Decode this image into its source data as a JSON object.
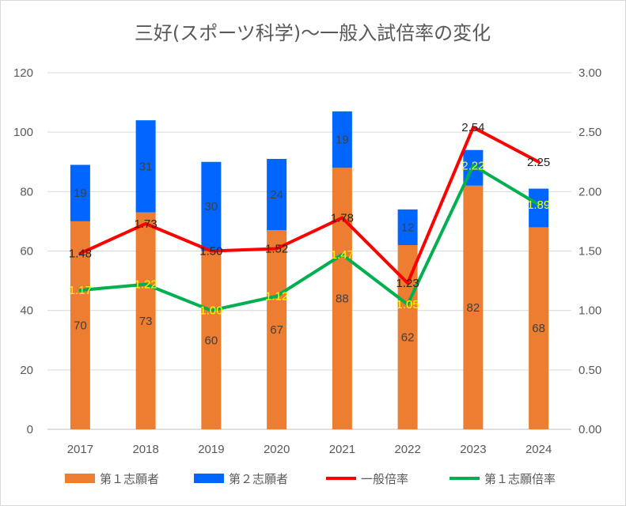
{
  "chart_data": {
    "type": "bar",
    "stacked": true,
    "title": "三好(スポーツ科学)～一般入試倍率の変化",
    "categories": [
      "2017",
      "2018",
      "2019",
      "2020",
      "2021",
      "2022",
      "2023",
      "2024"
    ],
    "series": [
      {
        "name": "第１志願者",
        "type": "bar",
        "axis": "left",
        "color": "#ed7d31",
        "label_color": "#404040",
        "values": [
          70,
          73,
          60,
          67,
          88,
          62,
          82,
          68
        ],
        "labels": [
          "70",
          "73",
          "60",
          "67",
          "88",
          "62",
          "82",
          "68"
        ]
      },
      {
        "name": "第２志願者",
        "type": "bar",
        "axis": "left",
        "color": "#0066ff",
        "label_color": "#404040",
        "values": [
          19,
          31,
          30,
          24,
          19,
          12,
          12,
          13
        ],
        "labels": [
          "19",
          "31",
          "30",
          "24",
          "19",
          "12",
          "",
          ""
        ]
      },
      {
        "name": "一般倍率",
        "type": "line",
        "axis": "right",
        "color": "#ff0000",
        "label_color": "#262626",
        "values": [
          1.48,
          1.73,
          1.5,
          1.52,
          1.78,
          1.23,
          2.54,
          2.25
        ],
        "labels": [
          "1.48",
          "1.73",
          "1.50",
          "1.52",
          "1.78",
          "1.23",
          "2.54",
          "2.25"
        ]
      },
      {
        "name": "第１志願倍率",
        "type": "line",
        "axis": "right",
        "color": "#00b050",
        "label_color": "#ffff00",
        "values": [
          1.17,
          1.22,
          1.0,
          1.12,
          1.47,
          1.05,
          2.22,
          1.89
        ],
        "labels": [
          "1.17",
          "1.22",
          "1.00",
          "1.12",
          "1.47",
          "1.05",
          "2.22",
          "1.89"
        ]
      }
    ],
    "y_left": {
      "min": 0,
      "max": 120,
      "step": 20,
      "ticks": [
        "0",
        "20",
        "40",
        "60",
        "80",
        "100",
        "120"
      ]
    },
    "y_right": {
      "min": 0,
      "max": 3,
      "step": 0.5,
      "ticks": [
        "0.00",
        "0.50",
        "1.00",
        "1.50",
        "2.00",
        "2.50",
        "3.00"
      ]
    },
    "grid": true,
    "legend_position": "bottom"
  }
}
